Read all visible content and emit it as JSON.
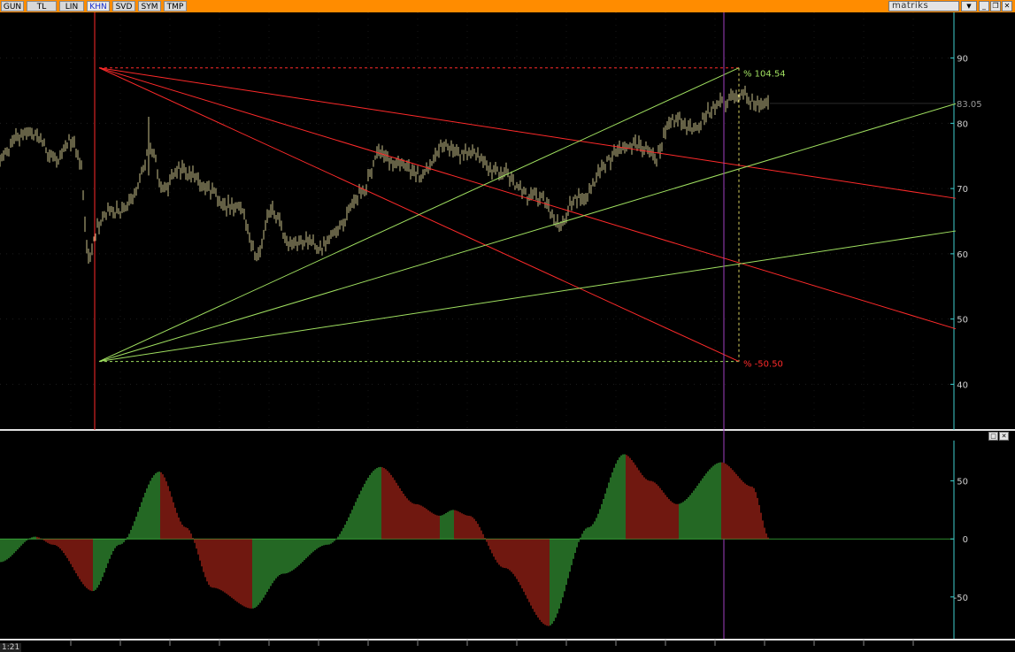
{
  "toolbar": {
    "tabs": [
      {
        "label": "GUN",
        "active": false
      },
      {
        "label": "TL",
        "active": false
      },
      {
        "label": "LIN",
        "active": false
      },
      {
        "label": "KHN",
        "active": true
      },
      {
        "label": "SVD",
        "active": false
      },
      {
        "label": "SYM",
        "active": false
      },
      {
        "label": "TMP",
        "active": false
      }
    ],
    "brand": "matriks",
    "dropdown_icon": "triangle-down-icon",
    "window_buttons": [
      "minimize-icon",
      "restore-icon",
      "close-icon"
    ]
  },
  "bottom_label": "1:21",
  "colors": {
    "background": "#000000",
    "candles": "#c8c08a",
    "red_lines": "#ff2a2a",
    "green_lines": "#a0e060",
    "axis": "#3fd0d0",
    "crosshair": "#a040c0",
    "toolbar": "#ff8c00"
  },
  "chart_data": [
    {
      "type": "line",
      "name": "price-panel",
      "y_ticks": [
        40,
        50,
        60,
        70,
        80,
        90
      ],
      "ylim": [
        33,
        97
      ],
      "x_count": 870,
      "last_price_label": "83.05",
      "upper_percent_label": "% 104.54",
      "lower_percent_label": "% -50.50",
      "price_keypoints": [
        {
          "x": 0,
          "y": 74.5
        },
        {
          "x": 30,
          "y": 79
        },
        {
          "x": 60,
          "y": 75
        },
        {
          "x": 80,
          "y": 77
        },
        {
          "x": 90,
          "y": 74
        },
        {
          "x": 100,
          "y": 60
        },
        {
          "x": 110,
          "y": 64
        },
        {
          "x": 125,
          "y": 66
        },
        {
          "x": 150,
          "y": 69
        },
        {
          "x": 172,
          "y": 76
        },
        {
          "x": 185,
          "y": 70
        },
        {
          "x": 210,
          "y": 73
        },
        {
          "x": 240,
          "y": 69
        },
        {
          "x": 270,
          "y": 67
        },
        {
          "x": 290,
          "y": 60
        },
        {
          "x": 305,
          "y": 66
        },
        {
          "x": 330,
          "y": 62
        },
        {
          "x": 360,
          "y": 61
        },
        {
          "x": 380,
          "y": 63
        },
        {
          "x": 410,
          "y": 70
        },
        {
          "x": 430,
          "y": 75
        },
        {
          "x": 450,
          "y": 74
        },
        {
          "x": 470,
          "y": 72
        },
        {
          "x": 500,
          "y": 76
        },
        {
          "x": 530,
          "y": 75.5
        },
        {
          "x": 560,
          "y": 73
        },
        {
          "x": 590,
          "y": 70
        },
        {
          "x": 612,
          "y": 68
        },
        {
          "x": 628,
          "y": 65
        },
        {
          "x": 655,
          "y": 68
        },
        {
          "x": 680,
          "y": 73
        },
        {
          "x": 710,
          "y": 77
        },
        {
          "x": 738,
          "y": 75
        },
        {
          "x": 760,
          "y": 80
        },
        {
          "x": 790,
          "y": 80
        },
        {
          "x": 820,
          "y": 84
        },
        {
          "x": 845,
          "y": 83.5
        },
        {
          "x": 870,
          "y": 83
        }
      ],
      "fan_lines": [
        {
          "color": "red",
          "from": [
            112,
            88.5
          ],
          "to": [
            1080,
            68.5
          ]
        },
        {
          "color": "red",
          "from": [
            112,
            88.5
          ],
          "to": [
            1080,
            48.5
          ]
        },
        {
          "color": "red",
          "from": [
            112,
            88.5
          ],
          "to": [
            835,
            43.5
          ]
        },
        {
          "color": "green",
          "from": [
            112,
            43.5
          ],
          "to": [
            835,
            88.5
          ]
        },
        {
          "color": "green",
          "from": [
            112,
            43.5
          ],
          "to": [
            1080,
            83
          ]
        },
        {
          "color": "green",
          "from": [
            112,
            43.5
          ],
          "to": [
            1080,
            63.5
          ]
        }
      ],
      "fan_box": {
        "x0": 112,
        "x1": 835,
        "top": 88.5,
        "bottom": 43.5
      }
    },
    {
      "type": "bar",
      "name": "oscillator-panel",
      "y_ticks": [
        -50,
        0,
        50
      ],
      "ylim": [
        -86,
        84
      ],
      "x_count": 870,
      "osc_keypoints": [
        {
          "x": 0,
          "y": -20
        },
        {
          "x": 40,
          "y": 2
        },
        {
          "x": 60,
          "y": -5
        },
        {
          "x": 105,
          "y": -45
        },
        {
          "x": 135,
          "y": -5
        },
        {
          "x": 180,
          "y": 58
        },
        {
          "x": 210,
          "y": 10
        },
        {
          "x": 240,
          "y": -42
        },
        {
          "x": 285,
          "y": -60
        },
        {
          "x": 320,
          "y": -30
        },
        {
          "x": 370,
          "y": -5
        },
        {
          "x": 430,
          "y": 62
        },
        {
          "x": 470,
          "y": 30
        },
        {
          "x": 497,
          "y": 20
        },
        {
          "x": 512,
          "y": 25
        },
        {
          "x": 530,
          "y": 20
        },
        {
          "x": 570,
          "y": -25
        },
        {
          "x": 620,
          "y": -75
        },
        {
          "x": 665,
          "y": 10
        },
        {
          "x": 705,
          "y": 73
        },
        {
          "x": 735,
          "y": 50
        },
        {
          "x": 765,
          "y": 30
        },
        {
          "x": 815,
          "y": 66
        },
        {
          "x": 850,
          "y": 45
        },
        {
          "x": 870,
          "y": 0
        }
      ]
    }
  ],
  "crosshair_index": 818
}
